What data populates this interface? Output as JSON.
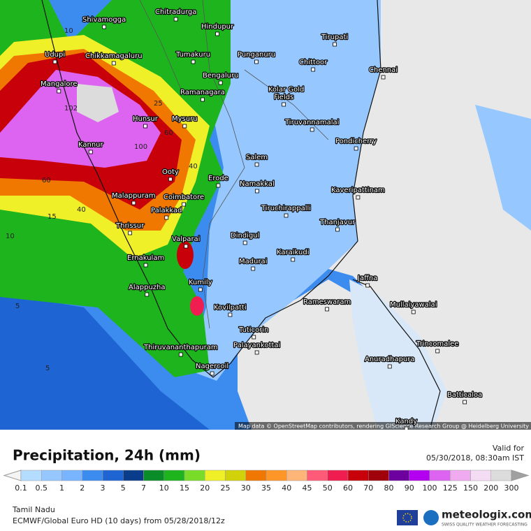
{
  "map": {
    "places": [
      "Shivamogga",
      "Chitradurga",
      "Hindupur",
      "Tirupati",
      "Udupi",
      "Chikkamagaluru",
      "Tumakuru",
      "Punganuru",
      "Chittoor",
      "Chennai",
      "Bengaluru",
      "Mangalore",
      "Ramanagara",
      "Kolar Gold",
      "Fields",
      "Hunsur",
      "Mysuru",
      "Tiruvannamalai",
      "Pondicherry",
      "Kannur",
      "Salem",
      "Ooty",
      "Erode",
      "Namakkal",
      "Kaveripattinam",
      "Malappuram",
      "Coimbatore",
      "Palakkad",
      "Tiruchirappalli",
      "Thrissur",
      "Thanjavur",
      "Dindigul",
      "Valparai",
      "Karaikudi",
      "Ernakulam",
      "Madurai",
      "Jaffna",
      "Alappuzha",
      "Kumily",
      "Rameswaram",
      "Mullaiyawalai",
      "Kovilpatti",
      "Tuticorin",
      "Trincomalee",
      "Palayankottai",
      "Thiruvananthapuram",
      "Anuradhapura",
      "Nagercoil",
      "Batticaloa",
      "Kandy"
    ],
    "contour_labels": [
      "10",
      "102",
      "25",
      "60",
      "100",
      "40",
      "60",
      "40",
      "15",
      "10",
      "5",
      "5"
    ],
    "attribution": "Map data © OpenStreetMap contributors, rendering GIScience Research Group @ Heidelberg University"
  },
  "legend": {
    "title": "Precipitation, 24h (mm)",
    "valid_label": "Valid for",
    "valid_time": "05/30/2018, 08:30am IST",
    "scale": [
      0.1,
      0.5,
      1,
      2,
      3,
      5,
      7,
      10,
      15,
      20,
      25,
      30,
      35,
      40,
      45,
      50,
      60,
      70,
      80,
      90,
      100,
      125,
      150,
      200,
      300
    ],
    "colors": [
      "#b4dcff",
      "#96c8ff",
      "#78b4ff",
      "#3c8cf0",
      "#1e64d2",
      "#0a3c8c",
      "#0a8c28",
      "#1eb41e",
      "#78dc28",
      "#f0f028",
      "#d2d20a",
      "#f07800",
      "#ff9628",
      "#ffb478",
      "#ff5a78",
      "#f01e50",
      "#c8000a",
      "#a0000a",
      "#6e00a0",
      "#b400f0",
      "#dc64f0",
      "#f0aaf0",
      "#f5dcf5",
      "#dcdcdc"
    ]
  },
  "footer": {
    "region": "Tamil Nadu",
    "model": "ECMWF/Global Euro HD (10 days) from 05/28/2018/12z",
    "brand": "meteologix.com",
    "tagline": "SWISS QUALITY WEATHER FORECASTING"
  }
}
